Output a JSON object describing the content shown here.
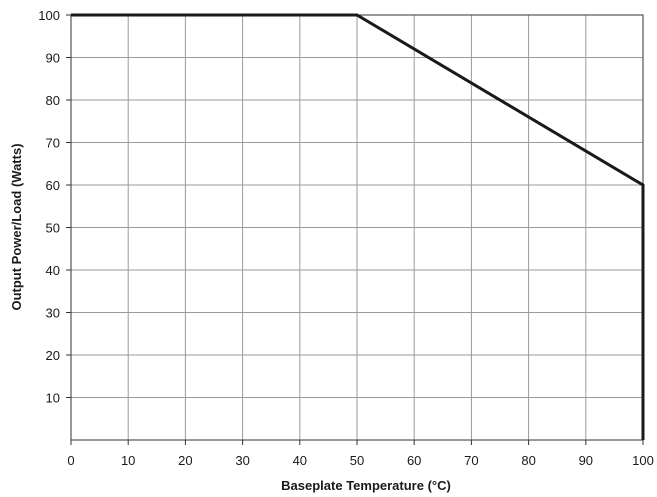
{
  "chart_data": {
    "type": "line",
    "title": "",
    "xlabel": "Baseplate Temperature (°C)",
    "ylabel": "Output Power/Load (Watts)",
    "xlim": [
      0,
      100
    ],
    "ylim": [
      0,
      100
    ],
    "x_ticks": [
      0,
      10,
      20,
      30,
      40,
      50,
      60,
      70,
      80,
      90,
      100
    ],
    "y_ticks": [
      10,
      20,
      30,
      40,
      50,
      60,
      70,
      80,
      90,
      100
    ],
    "x_tick_labels": [
      "0",
      "10",
      "20",
      "30",
      "40",
      "50",
      "60",
      "70",
      "80",
      "90",
      "100"
    ],
    "y_tick_labels": [
      "10",
      "20",
      "30",
      "40",
      "50",
      "60",
      "70",
      "80",
      "90",
      "100"
    ],
    "grid": true,
    "series": [
      {
        "x": [
          0,
          50,
          100,
          100
        ],
        "y": [
          100,
          100,
          60,
          0
        ]
      }
    ],
    "colors": {
      "line": "#1a1a1a",
      "grid": "#9a9a9a",
      "frame": "#333333",
      "text": "#1a1a1a"
    }
  }
}
